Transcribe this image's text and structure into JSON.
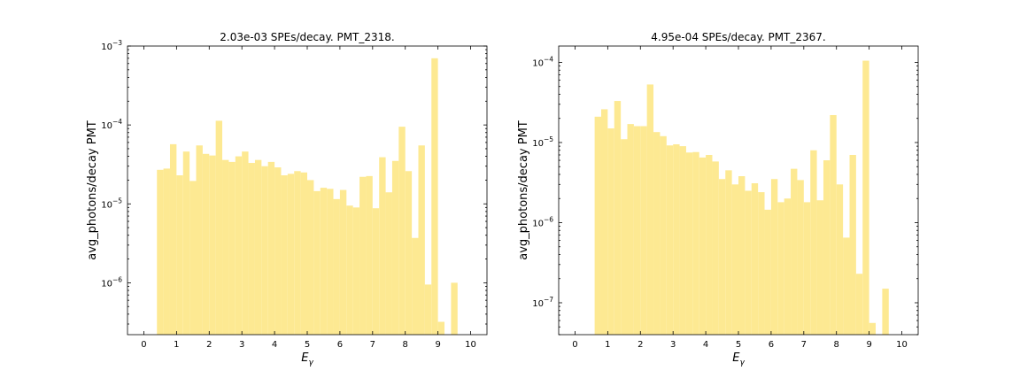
{
  "chart_data": [
    {
      "type": "bar",
      "title": "2.03e-03 SPEs/decay. PMT_2318.",
      "xlabel": "E_γ",
      "ylabel": "avg_photons/decay PMT",
      "yscale": "log",
      "xlim": [
        -0.5,
        10.5
      ],
      "ylim": [
        2.2e-07,
        0.001
      ],
      "bar_color": "#fde992",
      "bin_width": 0.2,
      "x_ticks": [
        0,
        1,
        2,
        3,
        4,
        5,
        6,
        7,
        8,
        9,
        10
      ],
      "y_ticks": [
        {
          "exp": "-6",
          "value": 1e-06
        },
        {
          "exp": "-5",
          "value": 1e-05
        },
        {
          "exp": "-4",
          "value": 0.0001
        },
        {
          "exp": "-3",
          "value": 0.001
        }
      ],
      "bins_start": [
        0.4,
        0.6,
        0.8,
        1.0,
        1.2,
        1.4,
        1.6,
        1.8,
        2.0,
        2.2,
        2.4,
        2.6,
        2.8,
        3.0,
        3.2,
        3.4,
        3.6,
        3.8,
        4.0,
        4.2,
        4.4,
        4.6,
        4.8,
        5.0,
        5.2,
        5.4,
        5.6,
        5.8,
        6.0,
        6.2,
        6.4,
        6.6,
        6.8,
        7.0,
        7.2,
        7.4,
        7.6,
        7.8,
        8.0,
        8.2,
        8.4,
        8.6,
        8.8,
        9.0,
        9.4
      ],
      "values": [
        2.7e-05,
        2.8e-05,
        5.7e-05,
        2.3e-05,
        4.6e-05,
        1.95e-05,
        5.5e-05,
        4.3e-05,
        4.1e-05,
        0.000113,
        3.6e-05,
        3.4e-05,
        4e-05,
        4.6e-05,
        3.3e-05,
        3.6e-05,
        3e-05,
        3.4e-05,
        2.9e-05,
        2.3e-05,
        2.4e-05,
        2.6e-05,
        2.5e-05,
        2e-05,
        1.45e-05,
        1.6e-05,
        1.55e-05,
        1.15e-05,
        1.5e-05,
        9.5e-06,
        9e-06,
        2.2e-05,
        2.25e-05,
        8.8e-06,
        3.9e-05,
        1.4e-05,
        3.5e-05,
        9.5e-05,
        2.6e-05,
        3.7e-06,
        5.5e-05,
        9.5e-07,
        0.0007,
        3.2e-07,
        1e-06
      ]
    },
    {
      "type": "bar",
      "title": "4.95e-04 SPEs/decay. PMT_2367.",
      "xlabel": "E_γ",
      "ylabel": "avg_photons/decay PMT",
      "yscale": "log",
      "xlim": [
        -0.5,
        10.5
      ],
      "ylim": [
        4e-08,
        0.00016
      ],
      "bar_color": "#fde992",
      "bin_width": 0.2,
      "x_ticks": [
        0,
        1,
        2,
        3,
        4,
        5,
        6,
        7,
        8,
        9,
        10
      ],
      "y_ticks": [
        {
          "exp": "-7",
          "value": 1e-07
        },
        {
          "exp": "-6",
          "value": 1e-06
        },
        {
          "exp": "-5",
          "value": 1e-05
        },
        {
          "exp": "-4",
          "value": 0.0001
        }
      ],
      "bins_start": [
        0.6,
        0.8,
        1.0,
        1.2,
        1.4,
        1.6,
        1.8,
        2.0,
        2.2,
        2.4,
        2.6,
        2.8,
        3.0,
        3.2,
        3.4,
        3.6,
        3.8,
        4.0,
        4.2,
        4.4,
        4.6,
        4.8,
        5.0,
        5.2,
        5.4,
        5.6,
        5.8,
        6.0,
        6.2,
        6.4,
        6.6,
        6.8,
        7.0,
        7.2,
        7.4,
        7.6,
        7.8,
        8.0,
        8.2,
        8.4,
        8.6,
        8.8,
        9.0,
        9.4
      ],
      "values": [
        2.1e-05,
        2.6e-05,
        1.5e-05,
        3.3e-05,
        1.1e-05,
        1.7e-05,
        1.6e-05,
        1.6e-05,
        5.3e-05,
        1.35e-05,
        1.2e-05,
        9.2e-06,
        9.5e-06,
        9e-06,
        7.5e-06,
        7.6e-06,
        6.5e-06,
        7e-06,
        5.8e-06,
        3.5e-06,
        4.5e-06,
        3e-06,
        3.8e-06,
        2.5e-06,
        3.1e-06,
        2.4e-06,
        1.45e-06,
        3.5e-06,
        1.8e-06,
        2e-06,
        4.7e-06,
        3.4e-06,
        1.8e-06,
        8e-06,
        1.9e-06,
        6e-06,
        2.2e-05,
        3e-06,
        6.5e-07,
        7e-06,
        2.3e-07,
        0.000105,
        5.6e-08,
        1.5e-07
      ]
    }
  ]
}
